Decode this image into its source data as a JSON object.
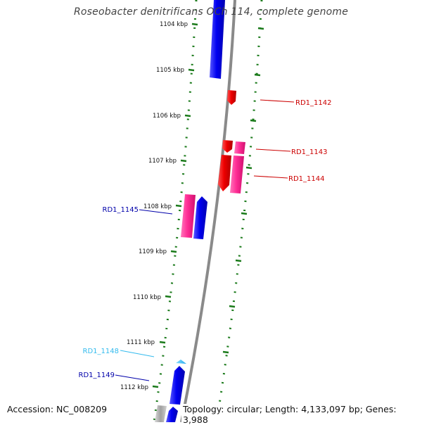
{
  "map": {
    "title": "Roseobacter denitrificans OCh 114, complete genome",
    "accession": "Accession: NC_008209",
    "topology": "Topology: circular; Length: 4,133,097 bp; Genes: 3,988",
    "ruler": [
      {
        "label": "1104 kbp"
      },
      {
        "label": "1105 kbp"
      },
      {
        "label": "1106 kbp"
      },
      {
        "label": "1107 kbp"
      },
      {
        "label": "1108 kbp"
      },
      {
        "label": "1109 kbp"
      },
      {
        "label": "1110 kbp"
      },
      {
        "label": "1111 kbp"
      },
      {
        "label": "1112 kbp"
      }
    ],
    "gene_labels": [
      {
        "id": "RD1_1142",
        "color": "#cc0000"
      },
      {
        "id": "RD1_1143",
        "color": "#cc0000"
      },
      {
        "id": "RD1_1144",
        "color": "#cc0000"
      },
      {
        "id": "RD1_1145",
        "color": "#0000aa"
      },
      {
        "id": "RD1_1148",
        "color": "#33bbee"
      },
      {
        "id": "RD1_1149",
        "color": "#0000aa"
      }
    ],
    "colors": {
      "backbone": "#808080",
      "tick": "#1a7a1a",
      "gene_blue": "#0000ee",
      "gene_red": "#ee0000",
      "gene_pink": "#ff3399",
      "gene_cyan": "#33bbee"
    }
  }
}
